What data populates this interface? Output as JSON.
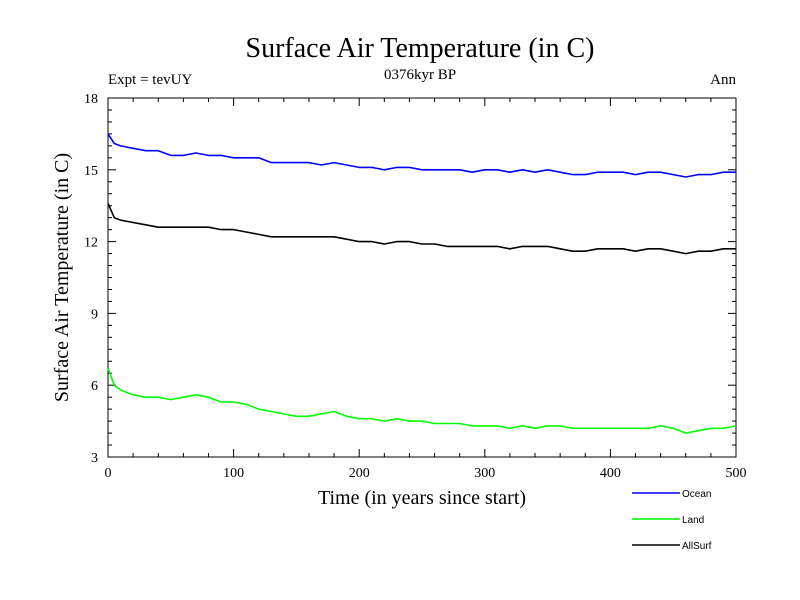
{
  "chart_data": {
    "type": "line",
    "title": "Surface Air Temperature (in C)",
    "subtitle": "0376kyr BP",
    "left_note": "Expt = tevUY",
    "right_note": "Ann",
    "xlabel": "Time (in years since start)",
    "ylabel": "Surface Air Temperature (in C)",
    "xlim": [
      0,
      500
    ],
    "ylim": [
      3,
      18
    ],
    "xticks": [
      0,
      100,
      200,
      300,
      400,
      500
    ],
    "yticks": [
      3,
      6,
      9,
      12,
      15,
      18
    ],
    "grid": false,
    "legend_position": "bottom-right",
    "x": [
      0,
      5,
      10,
      20,
      30,
      40,
      50,
      60,
      70,
      80,
      90,
      100,
      110,
      120,
      130,
      140,
      150,
      160,
      170,
      180,
      190,
      200,
      210,
      220,
      230,
      240,
      250,
      260,
      270,
      280,
      290,
      300,
      310,
      320,
      330,
      340,
      350,
      360,
      370,
      380,
      390,
      400,
      410,
      420,
      430,
      440,
      450,
      460,
      470,
      480,
      490,
      500
    ],
    "series": [
      {
        "name": "Ocean",
        "color": "#0000ff",
        "values": [
          16.5,
          16.1,
          16.0,
          15.9,
          15.8,
          15.8,
          15.6,
          15.6,
          15.7,
          15.6,
          15.6,
          15.5,
          15.5,
          15.5,
          15.3,
          15.3,
          15.3,
          15.3,
          15.2,
          15.3,
          15.2,
          15.1,
          15.1,
          15.0,
          15.1,
          15.1,
          15.0,
          15.0,
          15.0,
          15.0,
          14.9,
          15.0,
          15.0,
          14.9,
          15.0,
          14.9,
          15.0,
          14.9,
          14.8,
          14.8,
          14.9,
          14.9,
          14.9,
          14.8,
          14.9,
          14.9,
          14.8,
          14.7,
          14.8,
          14.8,
          14.9,
          14.9
        ]
      },
      {
        "name": "Land",
        "color": "#00ff00",
        "values": [
          6.7,
          6.0,
          5.8,
          5.6,
          5.5,
          5.5,
          5.4,
          5.5,
          5.6,
          5.5,
          5.3,
          5.3,
          5.2,
          5.0,
          4.9,
          4.8,
          4.7,
          4.7,
          4.8,
          4.9,
          4.7,
          4.6,
          4.6,
          4.5,
          4.6,
          4.5,
          4.5,
          4.4,
          4.4,
          4.4,
          4.3,
          4.3,
          4.3,
          4.2,
          4.3,
          4.2,
          4.3,
          4.3,
          4.2,
          4.2,
          4.2,
          4.2,
          4.2,
          4.2,
          4.2,
          4.3,
          4.2,
          4.0,
          4.1,
          4.2,
          4.2,
          4.3
        ]
      },
      {
        "name": "AllSurf",
        "color": "#000000",
        "values": [
          13.6,
          13.0,
          12.9,
          12.8,
          12.7,
          12.6,
          12.6,
          12.6,
          12.6,
          12.6,
          12.5,
          12.5,
          12.4,
          12.3,
          12.2,
          12.2,
          12.2,
          12.2,
          12.2,
          12.2,
          12.1,
          12.0,
          12.0,
          11.9,
          12.0,
          12.0,
          11.9,
          11.9,
          11.8,
          11.8,
          11.8,
          11.8,
          11.8,
          11.7,
          11.8,
          11.8,
          11.8,
          11.7,
          11.6,
          11.6,
          11.7,
          11.7,
          11.7,
          11.6,
          11.7,
          11.7,
          11.6,
          11.5,
          11.6,
          11.6,
          11.7,
          11.7
        ]
      }
    ]
  }
}
